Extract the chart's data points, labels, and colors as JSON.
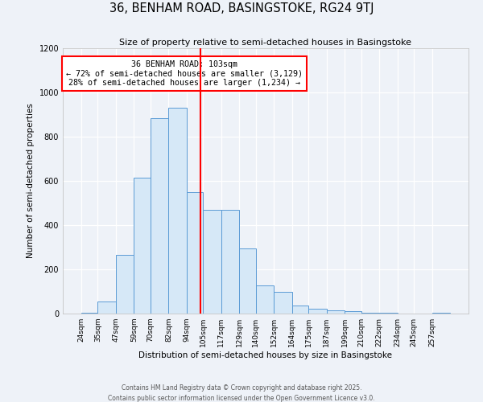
{
  "title": "36, BENHAM ROAD, BASINGSTOKE, RG24 9TJ",
  "subtitle": "Size of property relative to semi-detached houses in Basingstoke",
  "xlabel": "Distribution of semi-detached houses by size in Basingstoke",
  "ylabel": "Number of semi-detached properties",
  "bin_labels": [
    "24sqm",
    "35sqm",
    "47sqm",
    "59sqm",
    "70sqm",
    "82sqm",
    "94sqm",
    "105sqm",
    "117sqm",
    "129sqm",
    "140sqm",
    "152sqm",
    "164sqm",
    "175sqm",
    "187sqm",
    "199sqm",
    "210sqm",
    "222sqm",
    "234sqm",
    "245sqm",
    "257sqm"
  ],
  "bin_edges": [
    24,
    35,
    47,
    59,
    70,
    82,
    94,
    105,
    117,
    129,
    140,
    152,
    164,
    175,
    187,
    199,
    210,
    222,
    234,
    245,
    257
  ],
  "bar_values": [
    5,
    55,
    265,
    615,
    885,
    930,
    550,
    470,
    470,
    295,
    128,
    100,
    38,
    22,
    13,
    10,
    3,
    2,
    1,
    0,
    2
  ],
  "bar_face_color": "#d6e8f7",
  "bar_edge_color": "#5b9bd5",
  "vline_x": 103,
  "vline_color": "red",
  "annotation_title": "36 BENHAM ROAD: 103sqm",
  "annotation_line1": "← 72% of semi-detached houses are smaller (3,129)",
  "annotation_line2": "28% of semi-detached houses are larger (1,234) →",
  "ylim": [
    0,
    1200
  ],
  "yticks": [
    0,
    200,
    400,
    600,
    800,
    1000,
    1200
  ],
  "background_color": "#eef2f8",
  "footer_line1": "Contains HM Land Registry data © Crown copyright and database right 2025.",
  "footer_line2": "Contains public sector information licensed under the Open Government Licence v3.0."
}
